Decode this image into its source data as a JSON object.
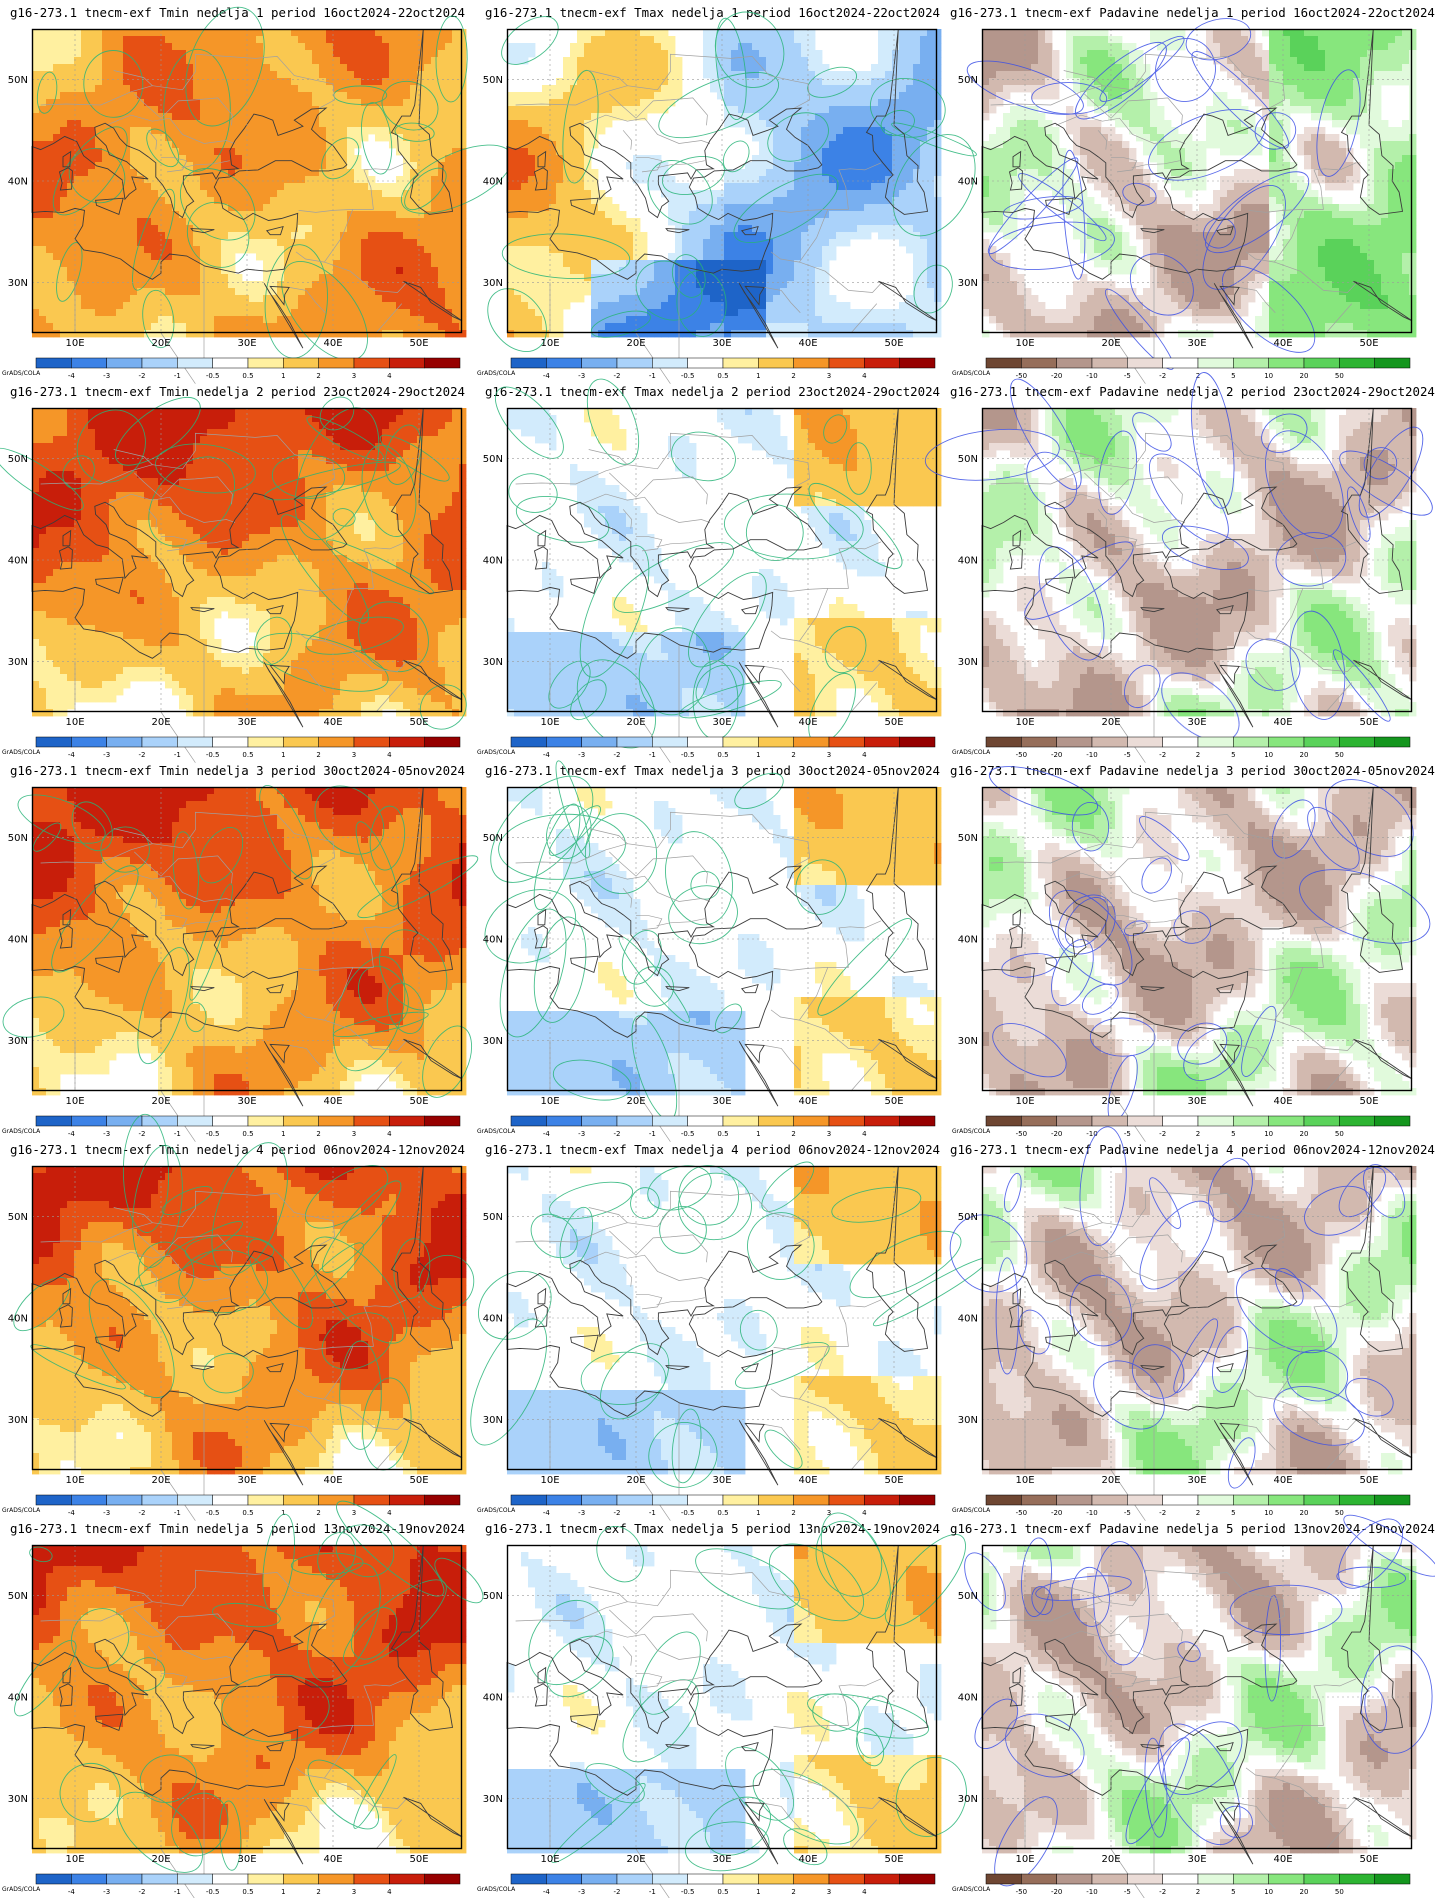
{
  "grads_label": "GrADS/COLA",
  "axes": {
    "lon_ticks": [
      "10E",
      "20E",
      "30E",
      "40E",
      "50E"
    ],
    "lat_ticks": [
      "50N",
      "40N",
      "30N"
    ]
  },
  "colorbars": {
    "temperature": {
      "labels": [
        "-4",
        "-3",
        "-2",
        "-1",
        "-0.5",
        "0.5",
        "1",
        "2",
        "3",
        "4"
      ],
      "colors": [
        "#1e64c8",
        "#3c82e6",
        "#78aff0",
        "#aad2fa",
        "#d2ebfc",
        "#ffffff",
        "#fff0a0",
        "#fac850",
        "#f59628",
        "#e65014",
        "#c81e0a",
        "#960000"
      ]
    },
    "precipitation": {
      "labels": [
        "-50",
        "-20",
        "-10",
        "-5",
        "-2",
        "2",
        "5",
        "10",
        "20",
        "50"
      ],
      "colors": [
        "#6e4632",
        "#966e5a",
        "#b4968c",
        "#d2b9af",
        "#ebdcd7",
        "#ffffff",
        "#e1fadc",
        "#b4f0aa",
        "#87e67d",
        "#5ad25a",
        "#2db432",
        "#14961e"
      ]
    }
  },
  "panels": [
    {
      "title": "g16-273.1 tnecm-exf Tmin nedelja 1 period 16oct2024-22oct2024",
      "type": "tmin"
    },
    {
      "title": "g16-273.1 tnecm-exf Tmax nedelja 1 period 16oct2024-22oct2024",
      "type": "tmax"
    },
    {
      "title": "g16-273.1 tnecm-exf Padavine nedelja 1 period 16oct2024-22oct2024",
      "type": "precip"
    },
    {
      "title": "g16-273.1 tnecm-exf Tmin nedelja 2 period 23oct2024-29oct2024",
      "type": "tmin"
    },
    {
      "title": "g16-273.1 tnecm-exf Tmax nedelja 2 period 23oct2024-29oct2024",
      "type": "tmax"
    },
    {
      "title": "g16-273.1 tnecm-exf Padavine nedelja 2 period 23oct2024-29oct2024",
      "type": "precip"
    },
    {
      "title": "g16-273.1 tnecm-exf Tmin nedelja 3 period 30oct2024-05nov2024",
      "type": "tmin"
    },
    {
      "title": "g16-273.1 tnecm-exf Tmax nedelja 3 period 30oct2024-05nov2024",
      "type": "tmax"
    },
    {
      "title": "g16-273.1 tnecm-exf Padavine nedelja 3 period 30oct2024-05nov2024",
      "type": "precip"
    },
    {
      "title": "g16-273.1 tnecm-exf Tmin nedelja 4 period 06nov2024-12nov2024",
      "type": "tmin"
    },
    {
      "title": "g16-273.1 tnecm-exf Tmax nedelja 4 period 06nov2024-12nov2024",
      "type": "tmax"
    },
    {
      "title": "g16-273.1 tnecm-exf Padavine nedelja 4 period 06nov2024-12nov2024",
      "type": "precip"
    },
    {
      "title": "g16-273.1 tnecm-exf Tmin nedelja 5 period 13nov2024-19nov2024",
      "type": "tmin"
    },
    {
      "title": "g16-273.1 tnecm-exf Tmax nedelja 5 period 13nov2024-19nov2024",
      "type": "tmax"
    },
    {
      "title": "g16-273.1 tnecm-exf Padavine nedelja 5 period 13nov2024-19nov2024",
      "type": "precip"
    }
  ]
}
